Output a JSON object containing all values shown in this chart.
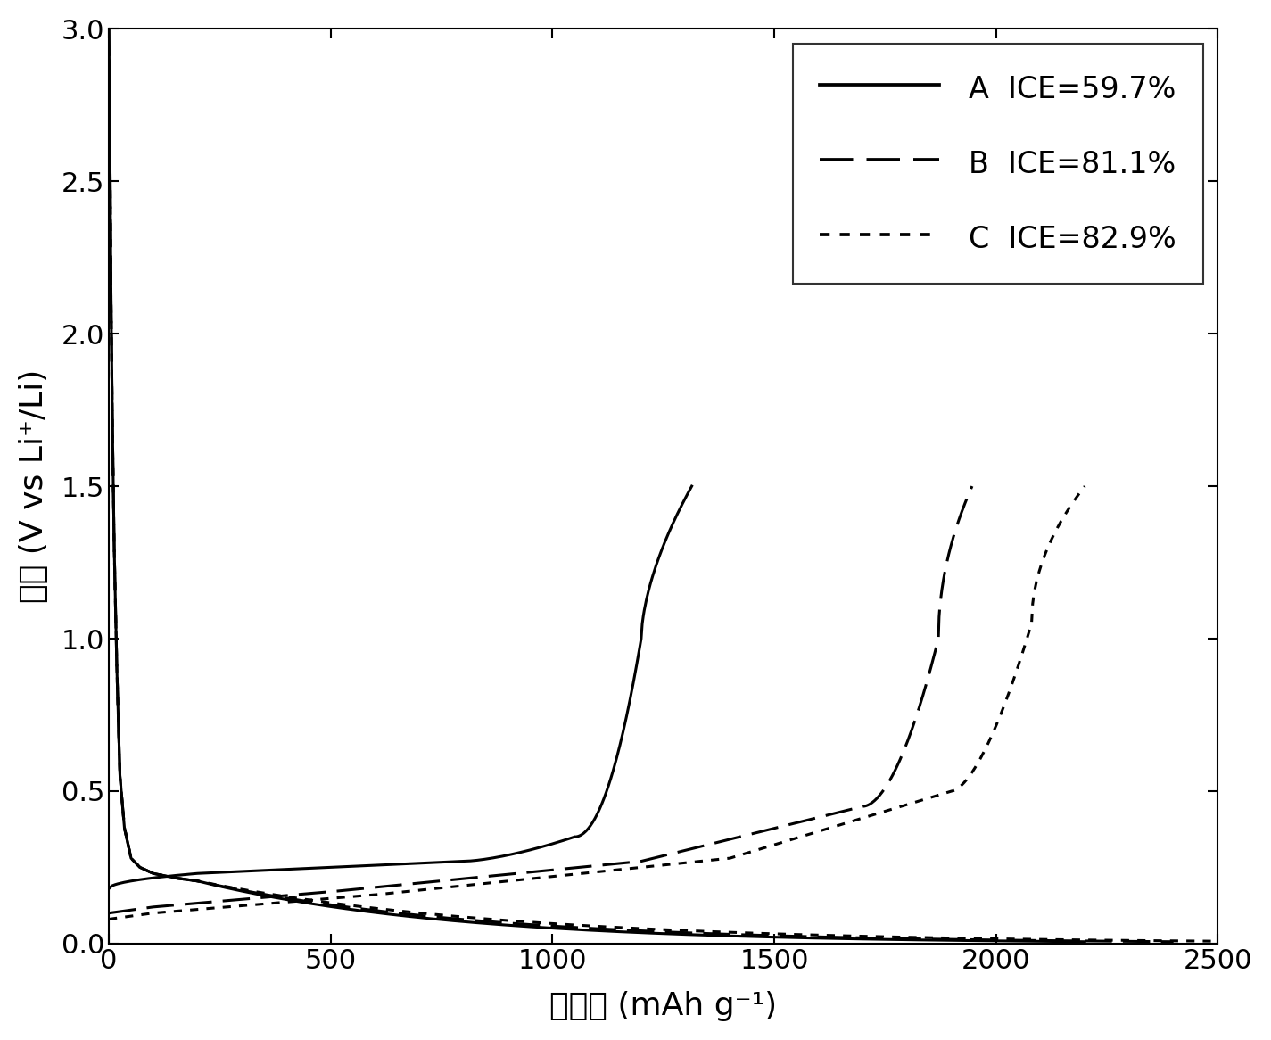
{
  "title": "",
  "xlabel": "比容量 (mAh g⁻¹)",
  "ylabel": "电势 (V vs Li⁺/Li)",
  "xlim": [
    0,
    2500
  ],
  "ylim": [
    0,
    3.0
  ],
  "xticks": [
    0,
    500,
    1000,
    1500,
    2000,
    2500
  ],
  "yticks": [
    0.0,
    0.5,
    1.0,
    1.5,
    2.0,
    2.5,
    3.0
  ],
  "legend_labels": [
    "A  ICE=59.7%",
    "B  ICE=81.1%",
    "C  ICE=82.9%"
  ],
  "background_color": "#ffffff",
  "line_color": "#000000",
  "linewidth": 2.2
}
